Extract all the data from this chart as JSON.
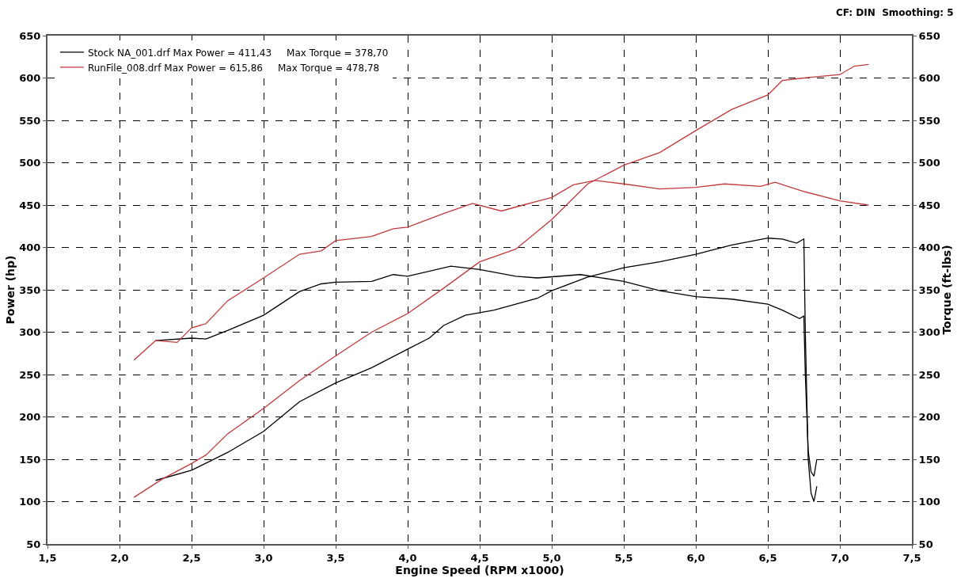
{
  "chart_data": {
    "type": "line",
    "xlabel": "Engine Speed (RPM x1000)",
    "ylabel": "Power (hp)",
    "y2label": "Torque (ft-lbs)",
    "annotations": [
      "CF: DIN  Smoothing: 5"
    ],
    "xlim": [
      1.5,
      7.5
    ],
    "xticks": [
      {
        "value": 1.5,
        "label": "1,5"
      },
      {
        "value": 2.0,
        "label": "2,0"
      },
      {
        "value": 2.5,
        "label": "2,5"
      },
      {
        "value": 3.0,
        "label": "3,0"
      },
      {
        "value": 3.5,
        "label": "3,5"
      },
      {
        "value": 4.0,
        "label": "4,0"
      },
      {
        "value": 4.5,
        "label": "4,5"
      },
      {
        "value": 5.0,
        "label": "5,0"
      },
      {
        "value": 5.5,
        "label": "5,5"
      },
      {
        "value": 6.0,
        "label": "6,0"
      },
      {
        "value": 6.5,
        "label": "6,5"
      },
      {
        "value": 7.0,
        "label": "7,0"
      },
      {
        "value": 7.5,
        "label": "7,5"
      }
    ],
    "ylim": [
      50,
      650
    ],
    "yticks": [
      50,
      100,
      150,
      200,
      250,
      300,
      350,
      400,
      450,
      500,
      550,
      600,
      650
    ],
    "y2lim": [
      50,
      650
    ],
    "y2ticks": [
      50,
      100,
      150,
      200,
      250,
      300,
      350,
      400,
      450,
      500,
      550,
      600,
      650
    ],
    "grid": true,
    "legend": "top left",
    "line_style": "solid",
    "marker": "none",
    "series": [
      {
        "name": "Stock NA_001.drf Max Power = 411,43     Max Torque = 378,70",
        "color": "#000000",
        "x": [
          2.25,
          2.5,
          2.75,
          3.0,
          3.25,
          3.5,
          3.75,
          4.0,
          4.15,
          4.25,
          4.4,
          4.6,
          4.75,
          4.9,
          5.0,
          5.25,
          5.5,
          5.75,
          6.0,
          6.25,
          6.5,
          6.6,
          6.7,
          6.75,
          6.76,
          6.78,
          6.8,
          6.82,
          6.84
        ],
        "values": [
          125,
          137,
          158,
          183,
          218,
          240,
          258,
          280,
          293,
          308,
          320,
          326,
          333,
          340,
          349,
          365,
          376,
          383,
          392,
          403,
          411,
          410,
          405,
          410,
          300,
          150,
          110,
          100,
          118
        ]
      },
      {
        "color": "#000000",
        "axis": "y2",
        "x": [
          2.25,
          2.5,
          2.6,
          2.75,
          3.0,
          3.25,
          3.4,
          3.5,
          3.75,
          3.9,
          4.0,
          4.3,
          4.5,
          4.75,
          4.9,
          5.2,
          5.5,
          5.75,
          6.0,
          6.25,
          6.5,
          6.6,
          6.72,
          6.75,
          6.76,
          6.78,
          6.8,
          6.82,
          6.84
        ],
        "values": [
          290,
          293,
          292,
          302,
          320,
          348,
          357,
          359,
          360,
          368,
          366,
          378,
          374,
          366,
          364,
          368,
          360,
          349,
          342,
          339,
          333,
          326,
          316,
          319,
          250,
          160,
          135,
          130,
          150
        ]
      },
      {
        "name": "RunFile_008.drf Max Power = 615,86     Max Torque = 478,78",
        "color": "#c0393b",
        "x": [
          2.1,
          2.3,
          2.5,
          2.6,
          2.75,
          3.0,
          3.25,
          3.5,
          3.75,
          4.0,
          4.25,
          4.5,
          4.75,
          5.0,
          5.25,
          5.5,
          5.75,
          6.0,
          6.25,
          6.5,
          6.6,
          6.75,
          7.0,
          7.1,
          7.2
        ],
        "values": [
          105,
          127,
          145,
          155,
          180,
          210,
          243,
          272,
          300,
          322,
          352,
          383,
          398,
          433,
          475,
          497,
          512,
          538,
          563,
          580,
          597,
          600,
          604,
          614,
          616
        ]
      },
      {
        "color": "#c0393b",
        "axis": "y2",
        "x": [
          2.1,
          2.25,
          2.4,
          2.5,
          2.6,
          2.75,
          3.0,
          3.25,
          3.4,
          3.5,
          3.75,
          3.9,
          4.0,
          4.25,
          4.45,
          4.65,
          4.8,
          5.0,
          5.15,
          5.3,
          5.5,
          5.75,
          6.0,
          6.2,
          6.45,
          6.55,
          6.75,
          7.0,
          7.2
        ],
        "values": [
          267,
          290,
          288,
          305,
          310,
          337,
          364,
          392,
          396,
          408,
          413,
          422,
          424,
          440,
          452,
          443,
          450,
          459,
          474,
          479,
          475,
          469,
          471,
          475,
          472,
          477,
          466,
          455,
          450
        ]
      }
    ]
  }
}
